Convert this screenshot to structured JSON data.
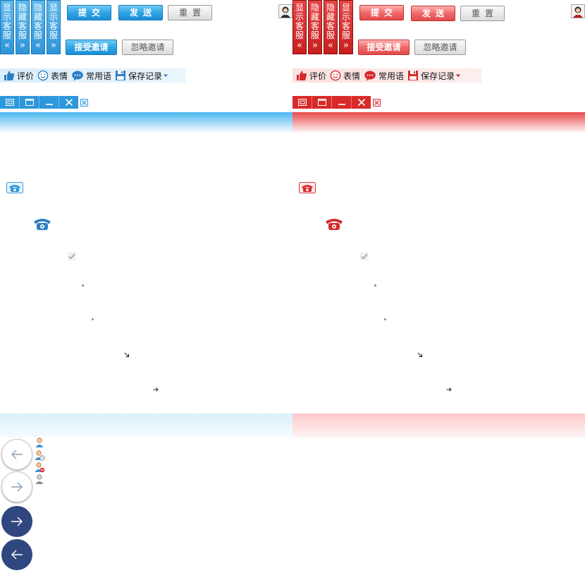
{
  "colors": {
    "blue_accent": "#2d97db",
    "red_accent": "#d92a2a",
    "nav_dark": "#30467f"
  },
  "panels": {
    "blue": {
      "side_tabs": [
        {
          "label": "显示客服",
          "arrow": "«"
        },
        {
          "label": "隐藏客服",
          "arrow": "»"
        },
        {
          "label": "隐藏客服",
          "arrow": "«"
        },
        {
          "label": "显示客服",
          "arrow": "»"
        }
      ],
      "buttons": {
        "submit": "提交",
        "send": "发送",
        "reset": "重置",
        "accept_invite": "接受邀请",
        "ignore_invite": "忽略邀请"
      },
      "toolbar": {
        "rate": "评价",
        "emoji": "表情",
        "phrases": "常用语",
        "save_record": "保存记录"
      }
    },
    "red": {
      "side_tabs": [
        {
          "label": "显示客服",
          "arrow": "«"
        },
        {
          "label": "隐藏客服",
          "arrow": "»"
        },
        {
          "label": "隐藏客服",
          "arrow": "«"
        },
        {
          "label": "显示客服",
          "arrow": "»"
        }
      ],
      "buttons": {
        "submit": "提交",
        "send": "发送",
        "reset": "重置",
        "accept_invite": "接受邀请",
        "ignore_invite": "忽略邀请"
      },
      "toolbar": {
        "rate": "评价",
        "emoji": "表情",
        "phrases": "常用语",
        "save_record": "保存记录"
      }
    }
  },
  "icons": {
    "phone_small": "phone-icon",
    "phone_large": "phone-handset-icon",
    "check": "check-icon",
    "arrow_down_right": "arrow-down-right-icon",
    "arrow_right": "arrow-right-icon",
    "nav_back": "arrow-left-icon",
    "nav_forward": "arrow-right-icon",
    "user_statuses": [
      "user-online-icon",
      "user-away-icon",
      "user-busy-icon",
      "user-offline-icon"
    ]
  }
}
